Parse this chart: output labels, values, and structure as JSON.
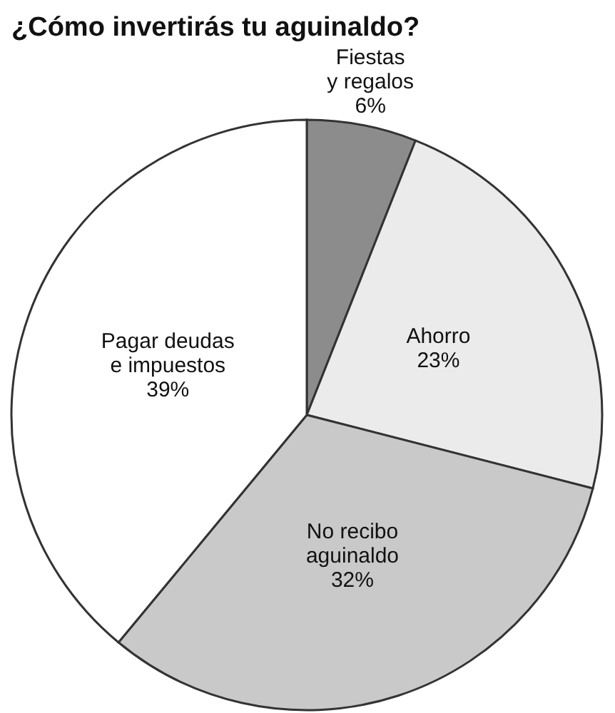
{
  "chart_data": {
    "type": "pie",
    "title": "¿Cómo invertirás tu aguinaldo?",
    "categories": [
      "Fiestas\ny regalos",
      "Ahorro",
      "No recibo\naguinaldo",
      "Pagar deudas\ne impuestos"
    ],
    "values": [
      6,
      23,
      32,
      39
    ],
    "value_labels": [
      "6%",
      "23%",
      "32%",
      "39%"
    ],
    "colors": [
      "#8c8c8c",
      "#ebebeb",
      "#c9c9c9",
      "#ffffff"
    ]
  }
}
